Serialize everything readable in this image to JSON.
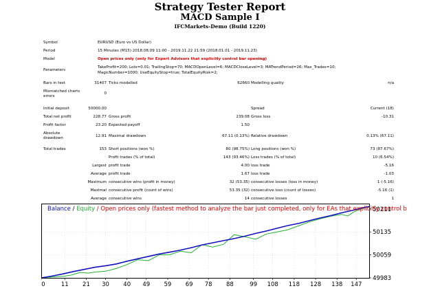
{
  "header": {
    "title": "Strategy Tester Report",
    "subtitle": "MACD Sample I",
    "server": "IFCMarkets-Demo (Build 1220)"
  },
  "rows": {
    "symbol": {
      "label": "Symbol",
      "value": "EURUSD (Euro vs US Dollar)"
    },
    "period": {
      "label": "Period",
      "value": "15 Minutes (M15) 2018.08.09 11:00 - 2019.11.22 21:59 (2018.01.01 - 2019.11.23)"
    },
    "model": {
      "label": "Model",
      "value": "Open prices only (only for Expert Advisors that explicitly control bar opening)"
    },
    "parameters": {
      "label": "Parameters",
      "line1": "TakeProfit=200; Lots=0.01; TrailingStop=70; MACDOpenLevel=6; MACDCloseLevel=3; MATrendPeriod=26; Max_Trades=10;",
      "line2": "MagicNumber=1000; UseEquityStop=true; TotalEquityRisk=2;"
    },
    "bars": {
      "label": "Bars in test",
      "value": "31407",
      "ticks_label": "Ticks modelled",
      "ticks_value": "62660",
      "quality_label": "Modelling quality",
      "quality_value": "n/a"
    },
    "mismatched": {
      "label1": "Mismatched charts",
      "label2": "errors",
      "value": "0"
    },
    "deposit": {
      "label": "Initial deposit",
      "value": "50000.00",
      "spread_label": "Spread",
      "spread_value": "Current (18)"
    },
    "net_profit": {
      "label": "Total net profit",
      "value": "228.77",
      "gp_label": "Gross profit",
      "gp_value": "239.08",
      "gl_label": "Gross loss",
      "gl_value": "-10.31"
    },
    "profit_factor": {
      "label": "Profit factor",
      "value": "23.20",
      "ep_label": "Expected payoff",
      "ep_value": "1.50"
    },
    "drawdown": {
      "label1": "Absolute",
      "label2": "drawdown",
      "value": "12.91",
      "md_label": "Maximal drawdown",
      "md_value": "67.11 (0.13%)",
      "rd_label": "Relative drawdown",
      "rd_value": "0.13% (67.11)"
    },
    "trades": {
      "label": "Total trades",
      "value": "153",
      "sp_label": "Short positions (won %)",
      "sp_value": "80 (98.75%)",
      "lp_label": "Long positions (won %)",
      "lp_value": "73 (87.67%)"
    },
    "pt": {
      "pt_label": "Profit trades (% of total)",
      "pt_value": "143 (93.46%)",
      "lt_label": "Loss trades (% of total)",
      "lt_value": "10 (6.54%)"
    },
    "largest": {
      "label": "Largest",
      "pt_label": "profit trade",
      "pt_value": "4.00",
      "lt_label": "loss trade",
      "lt_value": "-5.16"
    },
    "average": {
      "label": "Average",
      "pt_label": "profit trade",
      "pt_value": "1.67",
      "lt_label": "loss trade",
      "lt_value": "-1.03"
    },
    "maximum": {
      "label": "Maximum",
      "w_label": "consecutive wins (profit in money)",
      "w_value": "32 (53.35)",
      "l_label": "consecutive losses (loss in money)",
      "l_value": "1 (-5.16)"
    },
    "maximal": {
      "label": "Maximal",
      "w_label": "consecutive profit (count of wins)",
      "w_value": "53.35 (32)",
      "l_label": "consecutive loss (count of losses)",
      "l_value": "-5.16 (1)"
    },
    "average2": {
      "label": "Average",
      "w_label": "consecutive wins",
      "w_value": "14",
      "l_label": "consecutive losses",
      "l_value": "1"
    }
  },
  "legend": {
    "balance": "Balance",
    "sep1": " / ",
    "equity": "Equity",
    "rest": " / Open prices only (fastest method to analyze the bar just completed, only for EAs that explicitly control b"
  },
  "colors": {
    "balance": "#1010c0",
    "equity": "#20b030",
    "grid": "#c8c8c8",
    "axis": "#000000"
  },
  "chart_data": {
    "type": "line",
    "x_ticks": [
      "0",
      "11",
      "21",
      "30",
      "40",
      "49",
      "59",
      "69",
      "78",
      "88",
      "99",
      "108",
      "118",
      "128",
      "138",
      "147"
    ],
    "y_ticks": [
      "50211",
      "50135",
      "50059",
      "49983"
    ],
    "xlim": [
      0,
      153
    ],
    "ylim": [
      49983,
      50228.77
    ],
    "series": [
      {
        "name": "Balance",
        "color": "#1010c0",
        "x": [
          0,
          5,
          10,
          15,
          20,
          25,
          30,
          35,
          40,
          45,
          50,
          55,
          60,
          65,
          70,
          75,
          80,
          85,
          90,
          95,
          100,
          105,
          110,
          115,
          120,
          125,
          130,
          135,
          140,
          145,
          150,
          153
        ],
        "y": [
          49983,
          49989,
          49996,
          50004,
          50011,
          50018,
          50023,
          50029,
          50038,
          50046,
          50054,
          50062,
          50068,
          50075,
          50083,
          50092,
          50099,
          50106,
          50113,
          50121,
          50130,
          50138,
          50147,
          50156,
          50163,
          50172,
          50181,
          50189,
          50198,
          50206,
          50215,
          50219
        ]
      },
      {
        "name": "Equity",
        "color": "#20b030",
        "x": [
          0,
          5,
          10,
          14,
          18,
          22,
          26,
          30,
          35,
          40,
          45,
          50,
          55,
          60,
          65,
          70,
          75,
          80,
          85,
          90,
          95,
          100,
          105,
          110,
          115,
          120,
          125,
          130,
          135,
          140,
          143,
          146,
          150,
          153
        ],
        "y": [
          49983,
          49986,
          49988,
          49992,
          50001,
          49999,
          50003,
          50005,
          50014,
          50027,
          50043,
          50040,
          50059,
          50060,
          50071,
          50066,
          50093,
          50085,
          50094,
          50126,
          50119,
          50111,
          50128,
          50135,
          50142,
          50155,
          50168,
          50178,
          50187,
          50193,
          50188,
          50202,
          50213,
          50219
        ]
      }
    ]
  }
}
